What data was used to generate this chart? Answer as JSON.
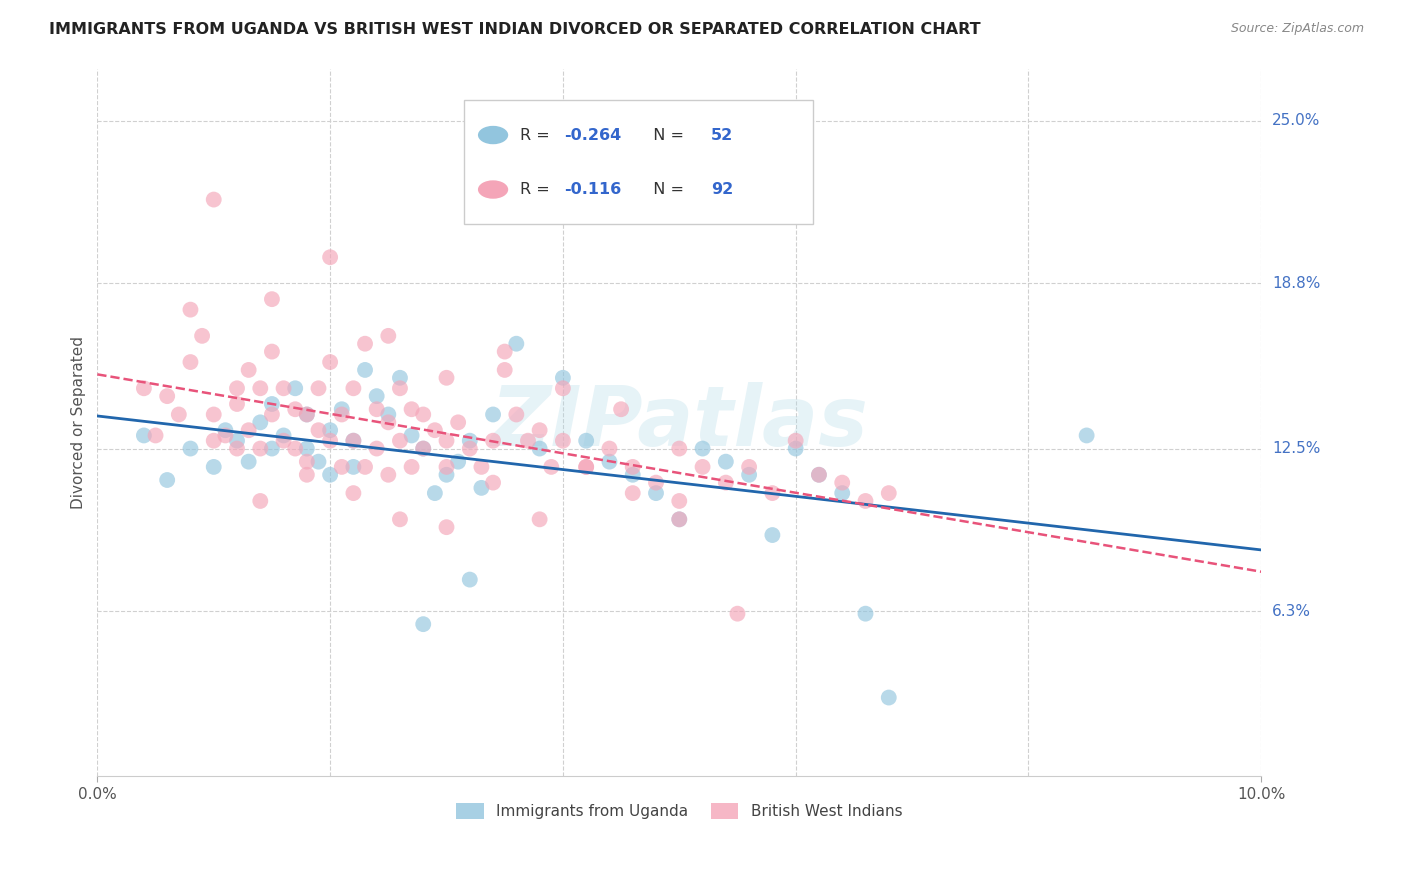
{
  "title": "IMMIGRANTS FROM UGANDA VS BRITISH WEST INDIAN DIVORCED OR SEPARATED CORRELATION CHART",
  "source": "Source: ZipAtlas.com",
  "ylabel": "Divorced or Separated",
  "legend_label1": "Immigrants from Uganda",
  "legend_label2": "British West Indians",
  "r1": -0.264,
  "n1": 52,
  "r2": -0.116,
  "n2": 92,
  "color1": "#92c5de",
  "color2": "#f4a5b8",
  "line_color1": "#2166ac",
  "line_color2": "#e8537a",
  "xlim": [
    0.0,
    0.1
  ],
  "ylim": [
    0.0,
    0.27
  ],
  "ytick_vals": [
    0.063,
    0.125,
    0.188,
    0.25
  ],
  "ytick_labels": [
    "6.3%",
    "12.5%",
    "18.8%",
    "25.0%"
  ],
  "background_color": "#ffffff",
  "watermark": "ZIPatlas",
  "scatter1_x": [
    0.004,
    0.006,
    0.008,
    0.01,
    0.011,
    0.012,
    0.013,
    0.014,
    0.015,
    0.015,
    0.016,
    0.017,
    0.018,
    0.018,
    0.019,
    0.02,
    0.02,
    0.021,
    0.022,
    0.022,
    0.023,
    0.024,
    0.025,
    0.026,
    0.027,
    0.028,
    0.029,
    0.03,
    0.031,
    0.032,
    0.033,
    0.034,
    0.036,
    0.038,
    0.04,
    0.042,
    0.044,
    0.046,
    0.048,
    0.05,
    0.052,
    0.054,
    0.056,
    0.058,
    0.06,
    0.062,
    0.064,
    0.066,
    0.068,
    0.085,
    0.028,
    0.032
  ],
  "scatter1_y": [
    0.13,
    0.113,
    0.125,
    0.118,
    0.132,
    0.128,
    0.12,
    0.135,
    0.125,
    0.142,
    0.13,
    0.148,
    0.138,
    0.125,
    0.12,
    0.115,
    0.132,
    0.14,
    0.128,
    0.118,
    0.155,
    0.145,
    0.138,
    0.152,
    0.13,
    0.125,
    0.108,
    0.115,
    0.12,
    0.128,
    0.11,
    0.138,
    0.165,
    0.125,
    0.152,
    0.128,
    0.12,
    0.115,
    0.108,
    0.098,
    0.125,
    0.12,
    0.115,
    0.092,
    0.125,
    0.115,
    0.108,
    0.062,
    0.03,
    0.13,
    0.058,
    0.075
  ],
  "scatter2_x": [
    0.004,
    0.005,
    0.006,
    0.007,
    0.008,
    0.009,
    0.01,
    0.01,
    0.011,
    0.012,
    0.012,
    0.013,
    0.013,
    0.014,
    0.014,
    0.015,
    0.015,
    0.016,
    0.016,
    0.017,
    0.017,
    0.018,
    0.018,
    0.019,
    0.019,
    0.02,
    0.02,
    0.021,
    0.021,
    0.022,
    0.022,
    0.023,
    0.023,
    0.024,
    0.024,
    0.025,
    0.025,
    0.026,
    0.026,
    0.027,
    0.027,
    0.028,
    0.028,
    0.029,
    0.03,
    0.03,
    0.031,
    0.032,
    0.033,
    0.034,
    0.035,
    0.036,
    0.037,
    0.038,
    0.039,
    0.04,
    0.042,
    0.044,
    0.046,
    0.048,
    0.05,
    0.052,
    0.054,
    0.056,
    0.058,
    0.06,
    0.062,
    0.064,
    0.066,
    0.068,
    0.01,
    0.015,
    0.02,
    0.025,
    0.03,
    0.035,
    0.04,
    0.045,
    0.05,
    0.055,
    0.014,
    0.018,
    0.022,
    0.026,
    0.03,
    0.034,
    0.038,
    0.042,
    0.046,
    0.05,
    0.008,
    0.012
  ],
  "scatter2_y": [
    0.148,
    0.13,
    0.145,
    0.138,
    0.158,
    0.168,
    0.138,
    0.128,
    0.13,
    0.142,
    0.125,
    0.155,
    0.132,
    0.148,
    0.125,
    0.162,
    0.138,
    0.148,
    0.128,
    0.14,
    0.125,
    0.138,
    0.12,
    0.148,
    0.132,
    0.128,
    0.158,
    0.138,
    0.118,
    0.148,
    0.128,
    0.165,
    0.118,
    0.14,
    0.125,
    0.135,
    0.115,
    0.148,
    0.128,
    0.14,
    0.118,
    0.138,
    0.125,
    0.132,
    0.128,
    0.118,
    0.135,
    0.125,
    0.118,
    0.128,
    0.155,
    0.138,
    0.128,
    0.132,
    0.118,
    0.128,
    0.118,
    0.125,
    0.118,
    0.112,
    0.125,
    0.118,
    0.112,
    0.118,
    0.108,
    0.128,
    0.115,
    0.112,
    0.105,
    0.108,
    0.22,
    0.182,
    0.198,
    0.168,
    0.152,
    0.162,
    0.148,
    0.14,
    0.105,
    0.062,
    0.105,
    0.115,
    0.108,
    0.098,
    0.095,
    0.112,
    0.098,
    0.118,
    0.108,
    0.098,
    0.178,
    0.148
  ]
}
